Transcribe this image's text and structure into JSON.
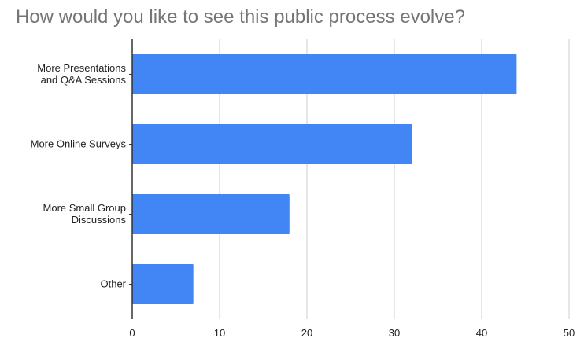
{
  "chart_data": {
    "type": "bar",
    "orientation": "horizontal",
    "title": "How would you like to see this public process evolve?",
    "categories": [
      [
        "More Presentations",
        "and Q&A Sessions"
      ],
      [
        "More Online Surveys"
      ],
      [
        "More Small Group",
        "Discussions"
      ],
      [
        "Other"
      ]
    ],
    "values": [
      44,
      32,
      18,
      7
    ],
    "xlim": [
      0,
      50
    ],
    "xticks": [
      0,
      10,
      20,
      30,
      40,
      50
    ],
    "grid": true,
    "legend": "none",
    "xlabel": "",
    "ylabel": "",
    "colors": {
      "bar": "#4285f4",
      "grid": "#cccccc",
      "axis": "#333333",
      "title": "#757575"
    }
  }
}
